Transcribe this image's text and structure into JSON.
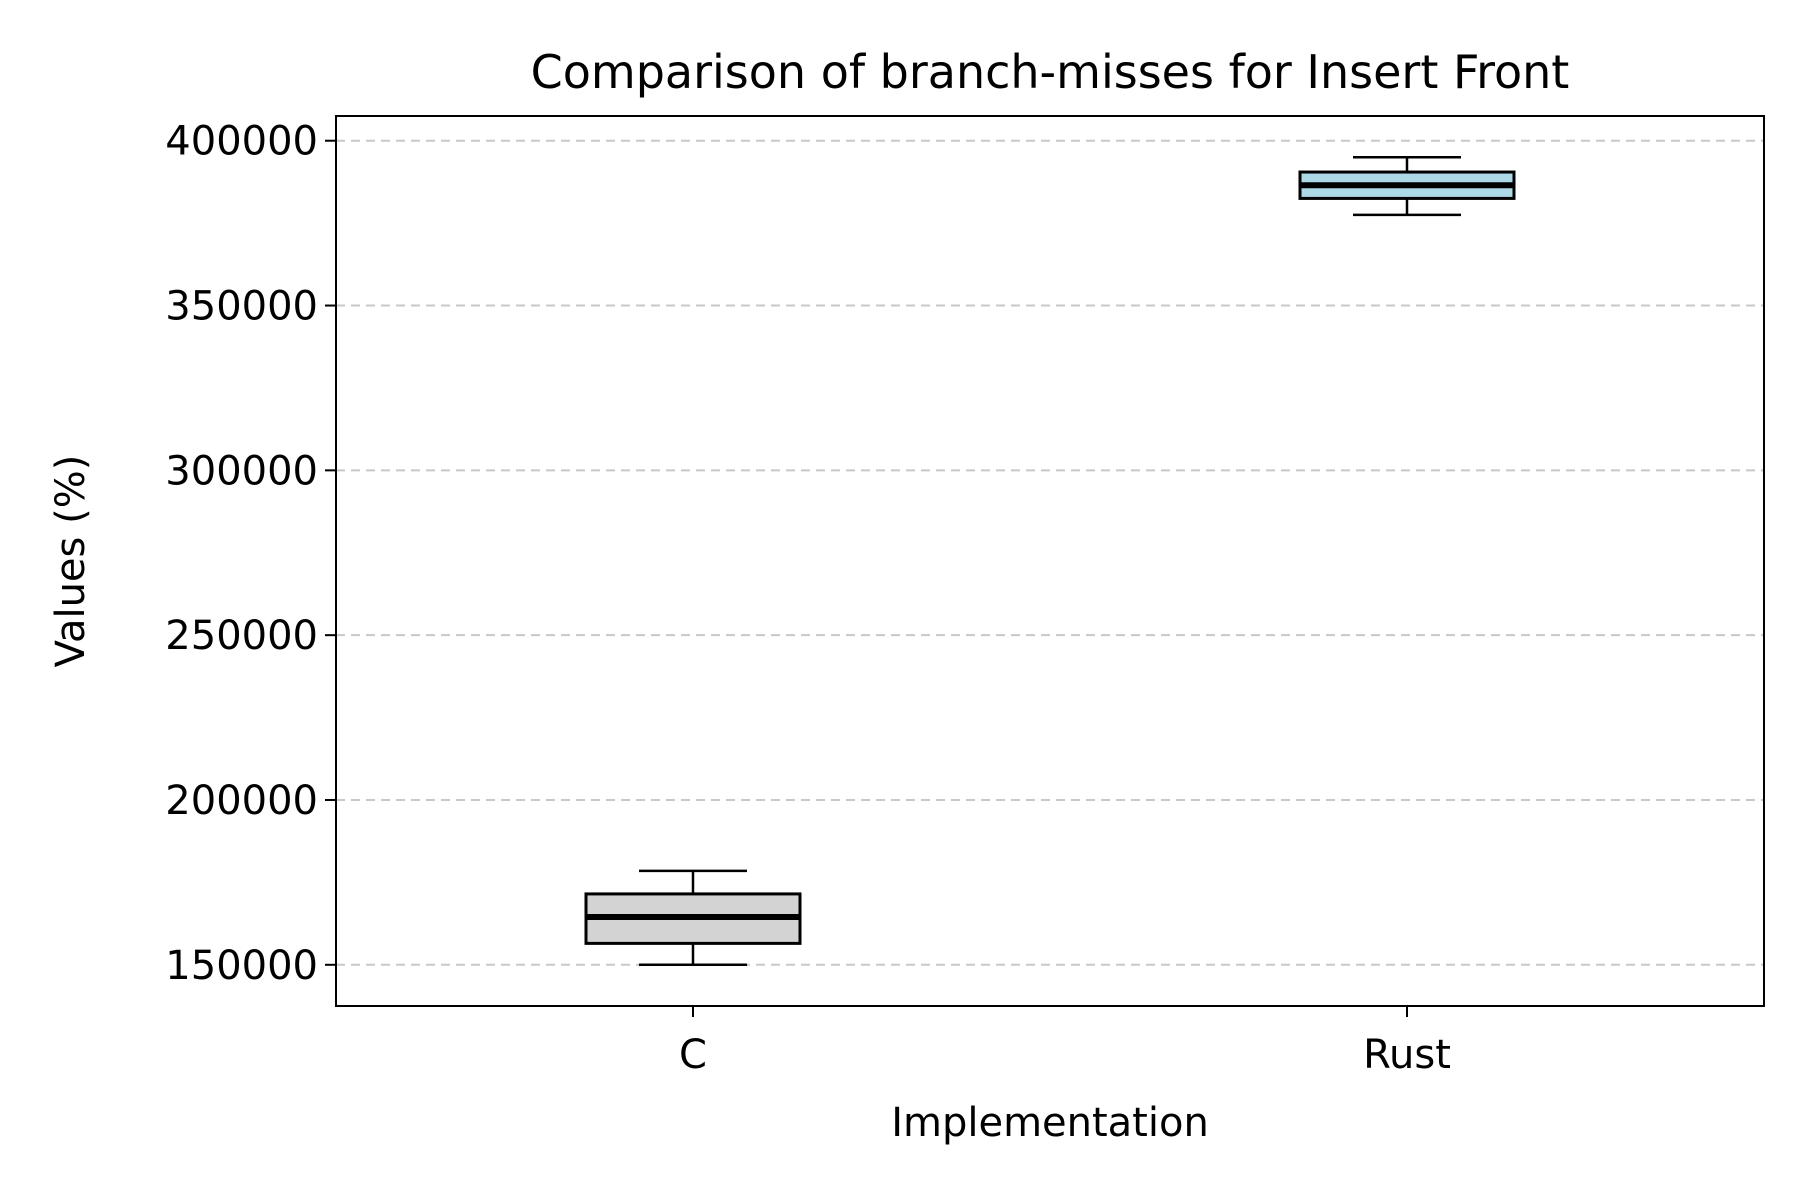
{
  "chart_data": {
    "type": "box",
    "title": "Comparison of branch-misses for Insert Front",
    "xlabel": "Implementation",
    "ylabel": "Values (%)",
    "categories": [
      "C",
      "Rust"
    ],
    "ylim": [
      137500,
      407500
    ],
    "yticks": [
      150000,
      200000,
      250000,
      300000,
      350000,
      400000
    ],
    "ytick_labels": [
      "150000",
      "200000",
      "250000",
      "300000",
      "350000",
      "400000"
    ],
    "grid": "y-dashed",
    "boxes": [
      {
        "category": "C",
        "whisker_low": 150000,
        "q1": 156500,
        "median": 164500,
        "q3": 171500,
        "whisker_high": 178500,
        "color": "#d3d3d3"
      },
      {
        "category": "Rust",
        "whisker_low": 377500,
        "q1": 382500,
        "median": 386500,
        "q3": 390500,
        "whisker_high": 395000,
        "color": "#add8e6"
      }
    ]
  }
}
